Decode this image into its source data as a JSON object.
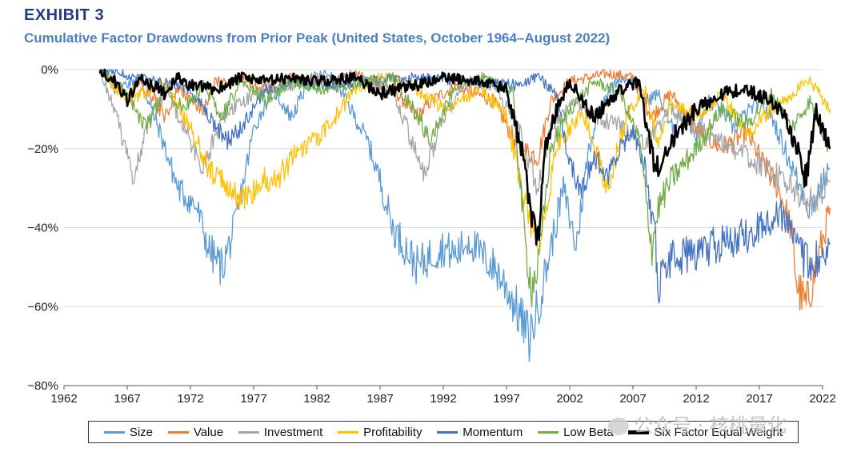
{
  "exhibit_label": "EXHIBIT 3",
  "watermark_text": "公众号 · 核桃量化",
  "chart_data": {
    "type": "line",
    "title": "Cumulative Factor Drawdowns from Prior Peak (United States, October 1964–August 2022)",
    "xlabel": "",
    "ylabel": "",
    "xlim": [
      1962,
      2022
    ],
    "ylim": [
      -80,
      0
    ],
    "x_ticks": [
      "1962",
      "1967",
      "1972",
      "1977",
      "1982",
      "1987",
      "1992",
      "1997",
      "2002",
      "2007",
      "2012",
      "2017",
      "2022"
    ],
    "y_ticks": [
      "0%",
      "−20%",
      "−40%",
      "−60%",
      "−80%"
    ],
    "grid": "horizontal",
    "legend_position": "bottom",
    "series": [
      {
        "name": "Size",
        "color": "#5b9bd5",
        "width": 1.3,
        "x": [
          1964.8,
          1966,
          1968,
          1969.5,
          1971,
          1972.5,
          1973.5,
          1974.5,
          1975.5,
          1977,
          1978.5,
          1980,
          1981.5,
          1983,
          1984,
          1985,
          1986,
          1987,
          1988,
          1989,
          1990,
          1991,
          1992,
          1993,
          1994,
          1995,
          1996,
          1997,
          1998,
          1998.8,
          1999.5,
          2000.5,
          2001.5,
          2002.5,
          2003.5,
          2004.5,
          2006,
          2007,
          2008,
          2009,
          2010,
          2011,
          2012,
          2013,
          2014,
          2015,
          2016,
          2017,
          2018,
          2019,
          2020,
          2021,
          2022.6
        ],
        "y": [
          0,
          -5,
          -2,
          -15,
          -30,
          -35,
          -46,
          -50,
          -40,
          -15,
          -5,
          -12,
          -2,
          -1,
          -6,
          -12,
          -18,
          -28,
          -40,
          -45,
          -50,
          -47,
          -45,
          -47,
          -43,
          -47,
          -50,
          -55,
          -62,
          -68,
          -60,
          -45,
          -30,
          -45,
          -20,
          -8,
          -2,
          -3,
          -8,
          -6,
          -15,
          -10,
          -17,
          -8,
          -10,
          -15,
          -11,
          -8,
          -12,
          -20,
          -28,
          -35,
          -25
        ]
      },
      {
        "name": "Value",
        "color": "#ed7d31",
        "width": 1.3,
        "x": [
          1964.8,
          1966,
          1967,
          1968,
          1970,
          1971,
          1973,
          1974,
          1976,
          1978,
          1980,
          1983,
          1985,
          1988,
          1990,
          1991,
          1993,
          1996,
          1998,
          1999.5,
          2000.5,
          2002,
          2005,
          2007,
          2008.5,
          2010,
          2012,
          2014,
          2016,
          2017.5,
          2018.5,
          2019.5,
          2020,
          2020.7,
          2021.5,
          2022.6
        ],
        "y": [
          0,
          -3,
          -8,
          -2,
          -12,
          -5,
          -10,
          -3,
          -2,
          -5,
          -2,
          -3,
          -1,
          -5,
          -12,
          -8,
          -4,
          -8,
          -20,
          -22,
          -8,
          -3,
          -1,
          -2,
          -12,
          -6,
          -15,
          -20,
          -16,
          -25,
          -30,
          -40,
          -55,
          -60,
          -50,
          -35
        ]
      },
      {
        "name": "Investment",
        "color": "#a5a5a5",
        "width": 1.3,
        "x": [
          1964.8,
          1966,
          1967.5,
          1968.5,
          1970,
          1972,
          1973,
          1974.5,
          1976,
          1978,
          1980,
          1982,
          1985,
          1988,
          1989.5,
          1990.5,
          1992,
          1994,
          1996,
          1998,
          1999.5,
          2000.5,
          2002,
          2004,
          2006,
          2008,
          2010,
          2012,
          2014,
          2016,
          2018,
          2019.5,
          2021,
          2022.6
        ],
        "y": [
          0,
          -10,
          -28,
          -15,
          -5,
          -18,
          -25,
          -12,
          -8,
          -5,
          -4,
          -3,
          -2,
          -5,
          -18,
          -27,
          -12,
          -3,
          -4,
          -15,
          -30,
          -15,
          -8,
          -12,
          -14,
          -18,
          -10,
          -15,
          -18,
          -22,
          -26,
          -30,
          -34,
          -28
        ]
      },
      {
        "name": "Profitability",
        "color": "#ffc000",
        "width": 1.3,
        "x": [
          1964.8,
          1967,
          1970,
          1972,
          1973.5,
          1975,
          1976.5,
          1977.5,
          1979,
          1980.5,
          1982,
          1983.5,
          1985,
          1987,
          1989,
          1992,
          1995,
          1997,
          1998.5,
          1999.5,
          2001,
          2003,
          2005,
          2006.5,
          2008,
          2009,
          2010,
          2012,
          2014,
          2016,
          2018,
          2020,
          2021,
          2022.6
        ],
        "y": [
          0,
          -8,
          -3,
          -15,
          -25,
          -30,
          -33,
          -28,
          -27,
          -20,
          -18,
          -12,
          -5,
          -2,
          -3,
          -10,
          -5,
          -12,
          -35,
          -45,
          -20,
          -10,
          -30,
          -12,
          -5,
          -18,
          -8,
          -12,
          -6,
          -16,
          -10,
          -5,
          -3,
          -10
        ]
      },
      {
        "name": "Momentum",
        "color": "#4472c4",
        "width": 1.3,
        "x": [
          1964.8,
          1968,
          1972,
          1974,
          1975,
          1976,
          1978,
          1980,
          1983,
          1986,
          1990,
          1994,
          1998,
          1999.5,
          2001,
          2002,
          2003,
          2004,
          2005,
          2006,
          2007,
          2008,
          2008.8,
          2009,
          2009.5,
          2010,
          2012,
          2014,
          2016,
          2017,
          2018.5,
          2019.5,
          2020.5,
          2021,
          2022.6
        ],
        "y": [
          0,
          -2,
          -5,
          -15,
          -18,
          -15,
          -5,
          -3,
          -4,
          -3,
          -2,
          -3,
          -4,
          -2,
          -6,
          -25,
          -30,
          -22,
          -28,
          -20,
          -15,
          -25,
          -45,
          -55,
          -52,
          -48,
          -46,
          -44,
          -42,
          -40,
          -36,
          -40,
          -48,
          -50,
          -44
        ]
      },
      {
        "name": "Low Beta",
        "color": "#70ad47",
        "width": 1.3,
        "x": [
          1964.8,
          1967,
          1968.5,
          1970,
          1971.5,
          1973,
          1974.5,
          1976,
          1978,
          1980,
          1982,
          1985,
          1988,
          1990,
          1991,
          1993,
          1995,
          1997.5,
          1998.5,
          1999,
          1999.5,
          2000.5,
          2002,
          2004,
          2006,
          2007.5,
          2008.5,
          2009,
          2010,
          2012,
          2014,
          2016,
          2018,
          2019.5,
          2021,
          2022.6
        ],
        "y": [
          0,
          -6,
          -15,
          -5,
          -10,
          -4,
          -12,
          -3,
          -8,
          -3,
          -5,
          -4,
          -2,
          -12,
          -18,
          -4,
          -2,
          -6,
          -45,
          -55,
          -50,
          -20,
          -10,
          -3,
          -6,
          -18,
          -45,
          -35,
          -28,
          -20,
          -10,
          -14,
          -6,
          -15,
          -8,
          -20
        ]
      },
      {
        "name": "Six Factor Equal Weight",
        "color": "#000000",
        "width": 2.6,
        "x": [
          1964.8,
          1966,
          1967,
          1968,
          1970,
          1971,
          1972,
          1974,
          1976,
          1978,
          1980,
          1982,
          1985,
          1987,
          1990,
          1992,
          1995,
          1997,
          1998.5,
          1999,
          1999.5,
          2000,
          2001,
          2002,
          2003,
          2004,
          2006,
          2007.5,
          2008.5,
          2009,
          2010,
          2011,
          2012,
          2014,
          2016,
          2018,
          2019,
          2020,
          2020.7,
          2021.5,
          2022,
          2022.6
        ],
        "y": [
          0,
          -3,
          -8,
          -2,
          -6,
          -2,
          -4,
          -5,
          -2,
          -3,
          -2,
          -3,
          -2,
          -6,
          -4,
          -2,
          -3,
          -5,
          -25,
          -38,
          -42,
          -20,
          -10,
          -3,
          -8,
          -12,
          -5,
          -3,
          -22,
          -25,
          -18,
          -14,
          -10,
          -6,
          -5,
          -8,
          -12,
          -20,
          -28,
          -10,
          -16,
          -20
        ]
      }
    ]
  }
}
